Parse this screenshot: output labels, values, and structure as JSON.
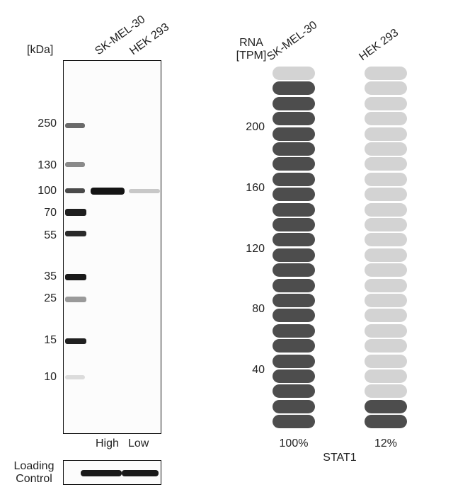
{
  "western_blot": {
    "unit_label": "[kDa]",
    "lanes": [
      {
        "name": "SK-MEL-30",
        "level": "High"
      },
      {
        "name": "HEK 293",
        "level": "Low"
      }
    ],
    "markers": [
      "250",
      "130",
      "100",
      "70",
      "55",
      "35",
      "25",
      "15",
      "10"
    ],
    "loading_control_label_1": "Loading",
    "loading_control_label_2": "Control"
  },
  "rna": {
    "axis_label_1": "RNA",
    "axis_label_2": "[TPM]",
    "ticks": [
      "200",
      "160",
      "120",
      "80",
      "40"
    ],
    "cell_lines": [
      {
        "name": "SK-MEL-30",
        "percent": "100%",
        "filled": 23,
        "total": 24
      },
      {
        "name": "HEK 293",
        "percent": "12%",
        "filled": 2,
        "total": 24
      }
    ],
    "gene": "STAT1",
    "colors": {
      "filled": "#4d4d4d",
      "empty": "#d3d3d3"
    }
  }
}
